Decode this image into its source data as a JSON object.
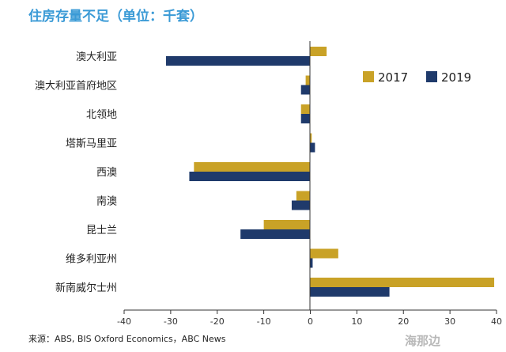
{
  "title": "住房存量不足（单位：千套）",
  "source": "来源：ABS, BIS Oxford Economics，ABC News",
  "watermark": "海那边",
  "chart_data": {
    "type": "bar",
    "orientation": "horizontal",
    "title": "住房存量不足（单位：千套）",
    "categories": [
      "澳大利亚",
      "澳大利亚首府地区",
      "北领地",
      "塔斯马里亚",
      "西澳",
      "南澳",
      "昆士兰",
      "维多利亚州",
      "新南威尔士州"
    ],
    "series": [
      {
        "name": "2017",
        "color": "#c9a227",
        "values": [
          3.5,
          -1,
          -2,
          0.3,
          -25,
          -3,
          -10,
          6,
          39.5
        ]
      },
      {
        "name": "2019",
        "color": "#1f3a6b",
        "values": [
          -31,
          -2,
          -2,
          1,
          -26,
          -4,
          -15,
          0.5,
          17
        ]
      }
    ],
    "xlim": [
      -40,
      40
    ],
    "xticks": [
      -40,
      -30,
      -20,
      -10,
      0,
      10,
      20,
      30,
      40
    ],
    "legend_position": "top-right",
    "grid": false
  }
}
